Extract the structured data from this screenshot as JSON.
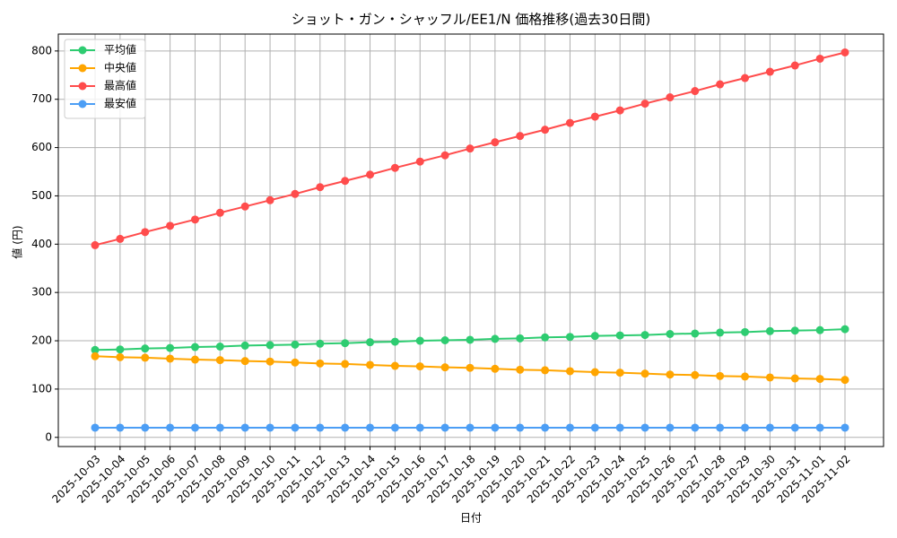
{
  "chart_data": {
    "type": "line",
    "title": "ショット・ガン・シャッフル/EE1/N 価格推移(過去30日間)",
    "x_label": "日付",
    "y_label": "値 (円)",
    "categories": [
      "2025-10-03",
      "2025-10-04",
      "2025-10-05",
      "2025-10-06",
      "2025-10-07",
      "2025-10-08",
      "2025-10-09",
      "2025-10-10",
      "2025-10-11",
      "2025-10-12",
      "2025-10-13",
      "2025-10-14",
      "2025-10-15",
      "2025-10-16",
      "2025-10-17",
      "2025-10-18",
      "2025-10-19",
      "2025-10-20",
      "2025-10-21",
      "2025-10-22",
      "2025-10-23",
      "2025-10-24",
      "2025-10-25",
      "2025-10-26",
      "2025-10-27",
      "2025-10-28",
      "2025-10-29",
      "2025-10-30",
      "2025-10-31",
      "2025-11-01",
      "2025-11-02"
    ],
    "series": [
      {
        "name": "平均値",
        "color": "#2ecc71",
        "values": [
          181,
          182,
          184,
          185,
          187,
          188,
          190,
          191,
          192,
          194,
          195,
          197,
          198,
          200,
          201,
          202,
          204,
          205,
          207,
          208,
          210,
          211,
          212,
          214,
          215,
          217,
          218,
          220,
          221,
          222,
          224
        ]
      },
      {
        "name": "中央値",
        "color": "#ffa500",
        "values": [
          168,
          166,
          165,
          163,
          161,
          160,
          158,
          157,
          155,
          153,
          152,
          150,
          148,
          147,
          145,
          144,
          142,
          140,
          139,
          137,
          135,
          134,
          132,
          130,
          129,
          127,
          126,
          124,
          122,
          121,
          119
        ]
      },
      {
        "name": "最高値",
        "color": "#ff4c4c",
        "values": [
          398,
          411,
          425,
          438,
          451,
          465,
          478,
          491,
          504,
          518,
          531,
          544,
          558,
          571,
          584,
          598,
          611,
          624,
          637,
          651,
          664,
          677,
          691,
          704,
          717,
          731,
          744,
          757,
          770,
          784,
          797
        ]
      },
      {
        "name": "最安値",
        "color": "#4c9ef5",
        "values": [
          20,
          20,
          20,
          20,
          20,
          20,
          20,
          20,
          20,
          20,
          20,
          20,
          20,
          20,
          20,
          20,
          20,
          20,
          20,
          20,
          20,
          20,
          20,
          20,
          20,
          20,
          20,
          20,
          20,
          20,
          20
        ]
      }
    ],
    "ylim": [
      -19,
      835
    ],
    "yticks": [
      0,
      100,
      200,
      300,
      400,
      500,
      600,
      700,
      800
    ],
    "grid": true,
    "legend": "upper left"
  }
}
